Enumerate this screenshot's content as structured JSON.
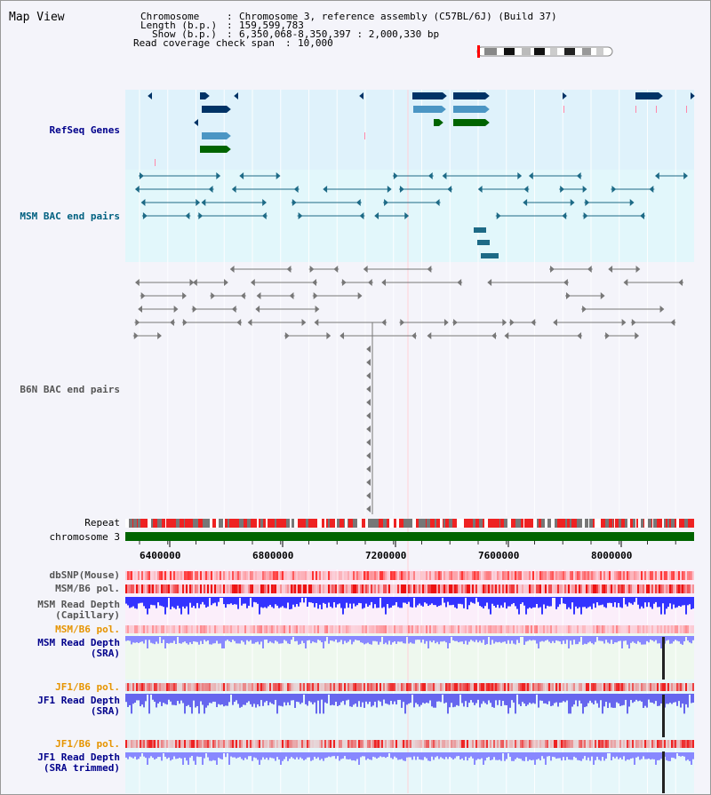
{
  "header": {
    "view_title": "Map View",
    "chromosome_key": "Chromosome",
    "chromosome_value": "Chromosome 3, reference assembly (C57BL/6J) (Build 37)",
    "length_key": "Length (b.p.)",
    "length_value": "159,599,783",
    "show_key": "Show (b.p.)",
    "show_value": "6,350,068-8,350,397 : 2,000,330 bp",
    "coverage_key": "Read coverage check span",
    "coverage_value": "10,000"
  },
  "tracks": {
    "refseq": "RefSeq Genes",
    "msm_bac": "MSM BAC end pairs",
    "b6n_bac": "B6N BAC end pairs",
    "repeat": "Repeat",
    "chromosome": "chromosome 3",
    "dbsnp": "dbSNP(Mouse)",
    "msm_b6_pol": "MSM/B6 pol.",
    "msm_depth_cap_1": "MSM Read Depth",
    "msm_depth_cap_2": "(Capillary)",
    "msm_b6_pol_2": "MSM/B6 pol.",
    "msm_depth_sra_1": "MSM Read Depth",
    "msm_depth_sra_2": "(SRA)",
    "jf1_b6_pol": "JF1/B6 pol.",
    "jf1_depth_sra_1": "JF1 Read Depth",
    "jf1_depth_sra_2": "(SRA)",
    "jf1_b6_pol_2": "JF1/B6 pol.",
    "jf1_depth_trim_1": "JF1 Read Depth",
    "jf1_depth_trim_2": "(SRA trimmed)"
  },
  "axis": {
    "ticks": [
      "6400000",
      "6800000",
      "7200000",
      "7600000",
      "8000000"
    ]
  },
  "colors": {
    "refseq_bg": "#dff2fb",
    "msm_bg": "#e2f7fb",
    "gene_dark": "#003366",
    "gene_mid": "#4b96c4",
    "gene_green": "#006400",
    "bac_msm": "#1d6a86",
    "bac_b6n": "#777777",
    "chromosome_bar": "#006400",
    "accent_red": "#ff0000",
    "depth_blue": "#3333ff",
    "depth_light": "#8888ff",
    "label_blue": "#00008b",
    "label_teal": "#006080",
    "label_orange": "#e69400"
  }
}
